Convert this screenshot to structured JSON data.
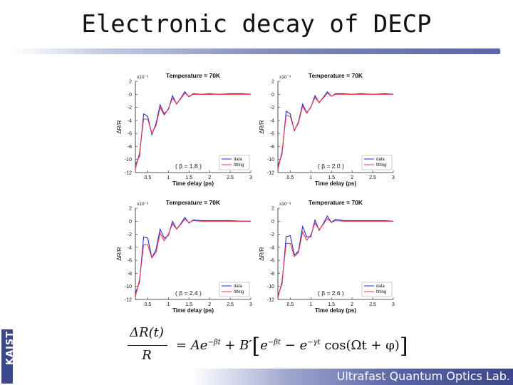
{
  "slide": {
    "title": "Electronic decay of DECP",
    "footer": "Ultrafast Quantum Optics Lab.",
    "logo_text": "KAIST",
    "colors": {
      "rule": "#5a66a6",
      "footer": "#3c468a",
      "data": "#2b2bd6",
      "fitting": "#e8334a"
    }
  },
  "formula": {
    "numerator": "ΔR(t)",
    "denominator": "R",
    "rhs_1": "= Ae",
    "exp_1": "−βt",
    "rhs_2": " + B′",
    "rhs_3": "e",
    "exp_2": "−βt",
    "rhs_4": " − e",
    "exp_3": "−γt",
    "rhs_5": " cos(Ωt + φ)"
  },
  "chart_data": [
    {
      "type": "line",
      "title": "Temperature = 70K",
      "xlabel": "Time delay (ps)",
      "ylabel": "ΔR/R",
      "y_exponent": "x10⁻³",
      "xlim": [
        0.2,
        3.0
      ],
      "ylim": [
        -12,
        2
      ],
      "xticks": [
        "0.5",
        "1",
        "1.5",
        "2",
        "2.5",
        "3"
      ],
      "yticks": [
        "2",
        "0",
        "-2",
        "-4",
        "-6",
        "-8",
        "-10",
        "-12"
      ],
      "annotation": "( β = 1.8 )",
      "legend": [
        "data",
        "fitting"
      ],
      "legend_position": "bottom-right",
      "x": [
        0.2,
        0.3,
        0.4,
        0.5,
        0.6,
        0.7,
        0.8,
        0.9,
        1.0,
        1.1,
        1.2,
        1.3,
        1.4,
        1.5,
        1.6,
        1.8,
        2.0,
        2.2,
        2.5,
        2.8,
        3.0
      ],
      "series": [
        {
          "name": "data",
          "values": [
            -10.8,
            -9.5,
            -3.0,
            -3.4,
            -6.2,
            -4.5,
            -1.6,
            -3.0,
            -2.3,
            -0.2,
            -1.5,
            -0.6,
            0.4,
            -0.4,
            0.1,
            0.0,
            0.1,
            0.0,
            0.1,
            0.1,
            0.0
          ]
        },
        {
          "name": "fitting",
          "values": [
            -11.5,
            -9.0,
            -3.8,
            -3.8,
            -6.0,
            -4.8,
            -2.0,
            -3.2,
            -2.2,
            -0.6,
            -1.4,
            -0.7,
            0.2,
            -0.3,
            0.0,
            0.0,
            0.0,
            0.0,
            0.0,
            0.0,
            0.0
          ]
        }
      ]
    },
    {
      "type": "line",
      "title": "Temperature = 70K",
      "xlabel": "Time delay (ps)",
      "ylabel": "ΔR/R",
      "y_exponent": "x10⁻³",
      "xlim": [
        0.2,
        3.0
      ],
      "ylim": [
        -12,
        2
      ],
      "xticks": [
        "0.5",
        "1",
        "1.5",
        "2",
        "2.5",
        "3"
      ],
      "yticks": [
        "2",
        "0",
        "-2",
        "-4",
        "-6",
        "-8",
        "-10",
        "-12"
      ],
      "annotation": "( β = 2.0 )",
      "legend": [
        "data",
        "fitting"
      ],
      "legend_position": "bottom-right",
      "x": [
        0.2,
        0.3,
        0.4,
        0.5,
        0.6,
        0.7,
        0.8,
        0.9,
        1.0,
        1.1,
        1.2,
        1.3,
        1.4,
        1.5,
        1.6,
        1.8,
        2.0,
        2.2,
        2.5,
        2.8,
        3.0
      ],
      "series": [
        {
          "name": "data",
          "values": [
            -11.0,
            -9.2,
            -2.6,
            -3.0,
            -5.6,
            -4.2,
            -1.5,
            -2.8,
            -2.0,
            -0.2,
            -1.3,
            -0.5,
            0.4,
            -0.3,
            0.1,
            0.1,
            0.0,
            0.1,
            0.0,
            0.1,
            0.0
          ]
        },
        {
          "name": "fitting",
          "values": [
            -11.6,
            -8.8,
            -3.2,
            -3.4,
            -5.5,
            -4.4,
            -1.8,
            -2.9,
            -1.9,
            -0.5,
            -1.2,
            -0.6,
            0.2,
            -0.3,
            0.0,
            0.0,
            0.0,
            0.0,
            0.0,
            0.0,
            0.0
          ]
        }
      ]
    },
    {
      "type": "line",
      "title": "Temperature = 70K",
      "xlabel": "Time delay (ps)",
      "ylabel": "ΔR/R",
      "y_exponent": "x10⁻³",
      "xlim": [
        0.2,
        3.0
      ],
      "ylim": [
        -12,
        2
      ],
      "xticks": [
        "0.5",
        "1",
        "1.5",
        "2",
        "2.5",
        "3"
      ],
      "yticks": [
        "2",
        "0",
        "-2",
        "-4",
        "-6",
        "-8",
        "-10",
        "-12"
      ],
      "annotation": "( β = 2.4 )",
      "legend": [
        "data",
        "fitting"
      ],
      "legend_position": "bottom-right",
      "x": [
        0.2,
        0.3,
        0.4,
        0.5,
        0.6,
        0.7,
        0.8,
        0.9,
        1.0,
        1.1,
        1.2,
        1.3,
        1.4,
        1.5,
        1.6,
        1.8,
        2.0,
        2.2,
        2.5,
        2.8,
        3.0
      ],
      "series": [
        {
          "name": "data",
          "values": [
            -11.0,
            -9.4,
            -2.4,
            -2.6,
            -5.6,
            -4.4,
            -1.2,
            -2.6,
            -2.2,
            0.0,
            -1.2,
            -0.4,
            0.6,
            -0.3,
            0.2,
            0.1,
            0.1,
            0.1,
            0.1,
            0.0,
            0.0
          ]
        },
        {
          "name": "fitting",
          "values": [
            -11.6,
            -9.0,
            -3.6,
            -3.6,
            -5.6,
            -4.8,
            -1.8,
            -3.0,
            -2.0,
            -0.4,
            -1.2,
            -0.5,
            0.3,
            -0.2,
            0.1,
            0.0,
            0.0,
            0.0,
            0.0,
            0.0,
            0.0
          ]
        }
      ]
    },
    {
      "type": "line",
      "title": "Temperature = 70K",
      "xlabel": "Time delay (ps)",
      "ylabel": "ΔR/R",
      "y_exponent": "x10⁻³",
      "xlim": [
        0.2,
        3.0
      ],
      "ylim": [
        -12,
        2
      ],
      "xticks": [
        "0.5",
        "1",
        "1.5",
        "2",
        "2.5",
        "3"
      ],
      "yticks": [
        "2",
        "0",
        "-2",
        "-4",
        "-6",
        "-8",
        "-10",
        "-12"
      ],
      "annotation": "( β = 2.6 )",
      "legend": [
        "data",
        "fitting"
      ],
      "legend_position": "bottom-right",
      "x": [
        0.2,
        0.3,
        0.4,
        0.5,
        0.6,
        0.7,
        0.8,
        0.9,
        1.0,
        1.1,
        1.2,
        1.3,
        1.4,
        1.5,
        1.6,
        1.8,
        2.0,
        2.2,
        2.5,
        2.8,
        3.0
      ],
      "series": [
        {
          "name": "data",
          "values": [
            -11.4,
            -9.6,
            -2.4,
            -2.2,
            -5.2,
            -4.6,
            -0.8,
            -2.4,
            -2.4,
            0.2,
            -1.4,
            -0.4,
            0.8,
            -0.2,
            0.3,
            0.1,
            0.1,
            0.1,
            0.1,
            0.1,
            0.0
          ]
        },
        {
          "name": "fitting",
          "values": [
            -11.8,
            -9.2,
            -3.4,
            -3.4,
            -5.4,
            -4.8,
            -1.6,
            -2.9,
            -2.1,
            -0.3,
            -1.3,
            -0.5,
            0.4,
            -0.2,
            0.1,
            0.0,
            0.0,
            0.0,
            0.0,
            0.0,
            0.0
          ]
        }
      ]
    }
  ]
}
